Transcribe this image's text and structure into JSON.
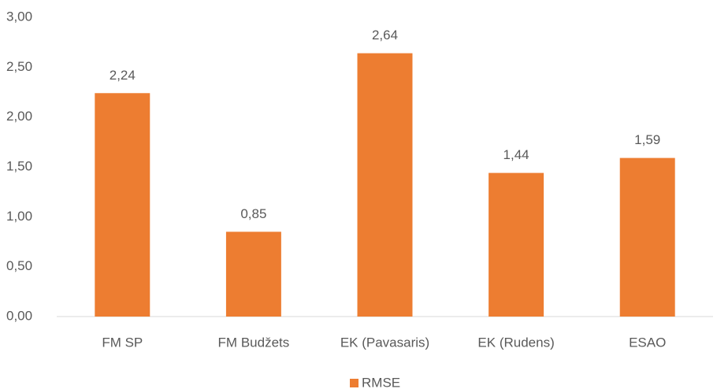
{
  "chart_data": {
    "type": "bar",
    "categories": [
      "FM SP",
      "FM Budžets",
      "EK (Pavasaris)",
      "EK (Rudens)",
      "ESAO"
    ],
    "series": [
      {
        "name": "RMSE",
        "color": "#ed7d31",
        "values": [
          2.24,
          0.85,
          2.64,
          1.44,
          1.59
        ],
        "value_labels": [
          "2,24",
          "0,85",
          "2,64",
          "1,44",
          "1,59"
        ]
      }
    ],
    "ylim": [
      0,
      3
    ],
    "yticks": [
      {
        "value": 0,
        "label": "0,00"
      },
      {
        "value": 0.5,
        "label": "0,50"
      },
      {
        "value": 1,
        "label": "1,00"
      },
      {
        "value": 1.5,
        "label": "1,50"
      },
      {
        "value": 2,
        "label": "2,00"
      },
      {
        "value": 2.5,
        "label": "2,50"
      },
      {
        "value": 3,
        "label": "3,00"
      }
    ],
    "grid": false,
    "legend": "bottom"
  }
}
